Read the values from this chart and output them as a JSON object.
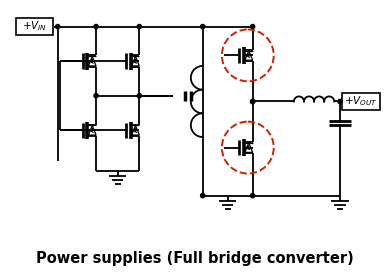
{
  "title": "Power supplies (Full bridge converter)",
  "title_fontsize": 10.5,
  "title_fontweight": "bold",
  "bg_color": "#ffffff",
  "line_color": "#000000",
  "dashed_circle_color": "#cc2200",
  "figsize": [
    3.9,
    2.75
  ],
  "dpi": 100
}
